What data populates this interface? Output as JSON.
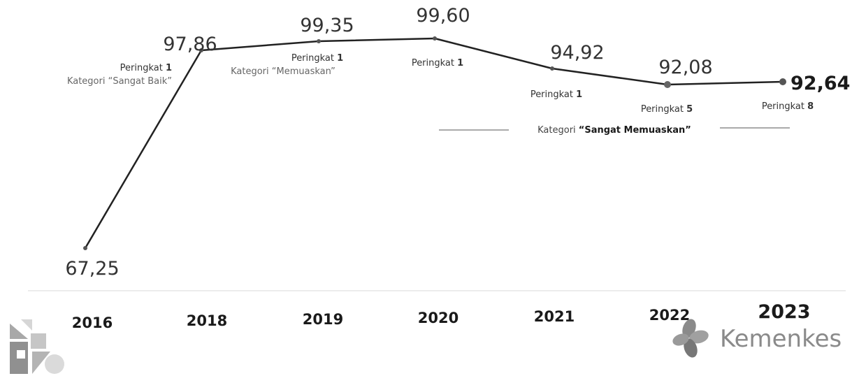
{
  "chart_data": {
    "type": "line",
    "x": [
      "2016",
      "2018",
      "2019",
      "2020",
      "2021",
      "2022",
      "2023"
    ],
    "series": [
      {
        "values": [
          67.25,
          97.86,
          99.35,
          99.6,
          94.92,
          92.08,
          92.64
        ],
        "value_labels": [
          "67,25",
          "97,86",
          "99,35",
          "99,60",
          "94,92",
          "92,08",
          "92,64"
        ]
      }
    ],
    "point_annotations": [
      {
        "x": "2018",
        "rank_prefix": "Peringkat ",
        "rank": "1",
        "category": "Kategori “Sangat Baik”"
      },
      {
        "x": "2019",
        "rank_prefix": "Peringkat ",
        "rank": "1",
        "category": "Kategori “Memuaskan”"
      },
      {
        "x": "2020",
        "rank_prefix": "Peringkat ",
        "rank": "1"
      },
      {
        "x": "2021",
        "rank_prefix": "Peringkat ",
        "rank": "1"
      },
      {
        "x": "2022",
        "rank_prefix": "Peringkat ",
        "rank": "5"
      },
      {
        "x": "2023",
        "rank_prefix": "Peringkat ",
        "rank": "8"
      }
    ],
    "range_annotation": {
      "from": "2020",
      "to": "2023",
      "prefix": "Kategori ",
      "bold_text": "“Sangat Memuaskan”"
    },
    "ylim": [
      60,
      102
    ],
    "grid": false,
    "line_color": "#222222"
  },
  "branding": {
    "right_logo_text": "Kemenkes",
    "left_logo_icon": "ministry-emblem-icon",
    "right_logo_icon": "kemenkes-flower-icon",
    "logo_color": "#8a8a8a"
  }
}
